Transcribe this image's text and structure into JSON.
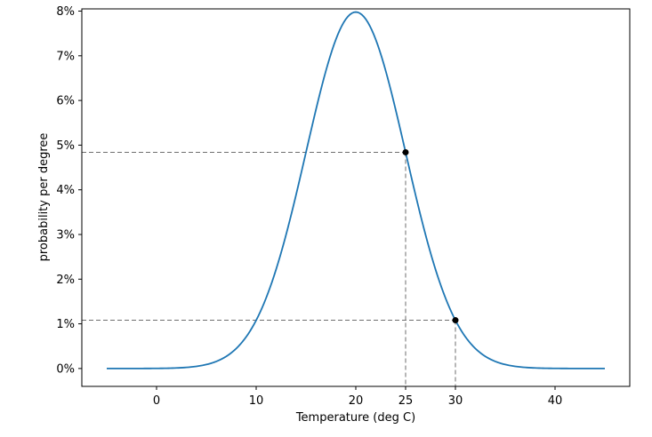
{
  "chart_data": {
    "type": "line",
    "title": "",
    "xlabel": "Temperature (deg C)",
    "ylabel": "probability per degree",
    "xlim": [
      -7.5,
      47.5
    ],
    "ylim": [
      -0.004,
      0.0805
    ],
    "grid": false,
    "legend": "none",
    "distribution": {
      "kind": "normal",
      "mean": 20,
      "sd": 5,
      "x_range": [
        -5,
        45
      ]
    },
    "x_ticks": [
      {
        "value": 0,
        "label": "0",
        "color": "#000000"
      },
      {
        "value": 10,
        "label": "10",
        "color": "#000000"
      },
      {
        "value": 20,
        "label": "20",
        "color": "#000000"
      },
      {
        "value": 25,
        "label": "25",
        "color": "#d62728"
      },
      {
        "value": 30,
        "label": "30",
        "color": "#000000"
      },
      {
        "value": 40,
        "label": "40",
        "color": "#000000"
      }
    ],
    "y_ticks": [
      {
        "value": 0.0,
        "label": "0%"
      },
      {
        "value": 0.01,
        "label": "1%"
      },
      {
        "value": 0.02,
        "label": "2%"
      },
      {
        "value": 0.03,
        "label": "3%"
      },
      {
        "value": 0.04,
        "label": "4%"
      },
      {
        "value": 0.05,
        "label": "5%"
      },
      {
        "value": 0.06,
        "label": "6%"
      },
      {
        "value": 0.07,
        "label": "7%"
      },
      {
        "value": 0.08,
        "label": "8%"
      }
    ],
    "series": [
      {
        "color": "#1f77b4",
        "x": [
          -5,
          -2.5,
          0,
          2.5,
          5,
          7.5,
          10,
          11,
          12,
          13,
          14,
          15,
          16,
          17,
          18,
          19,
          20,
          21,
          22,
          23,
          24,
          25,
          26,
          27,
          28,
          29,
          30,
          32.5,
          35,
          37.5,
          40,
          42.5,
          45
        ],
        "y": [
          3e-07,
          3.2e-06,
          2.67e-05,
          0.000175,
          0.000886,
          0.0035,
          0.0108,
          0.0158,
          0.0222,
          0.0299,
          0.0388,
          0.0484,
          0.0579,
          0.0666,
          0.0737,
          0.0782,
          0.0798,
          0.0782,
          0.0737,
          0.0666,
          0.0579,
          0.0484,
          0.0388,
          0.0299,
          0.0222,
          0.0158,
          0.0108,
          0.0035,
          0.000886,
          0.000175,
          2.67e-05,
          3.2e-06,
          3e-07
        ]
      }
    ],
    "highlight_points": [
      {
        "x": 25,
        "y": 0.0484,
        "color": "#000000"
      },
      {
        "x": 30,
        "y": 0.0108,
        "color": "#000000"
      }
    ],
    "reference_line_color": "#6e6e6e"
  }
}
